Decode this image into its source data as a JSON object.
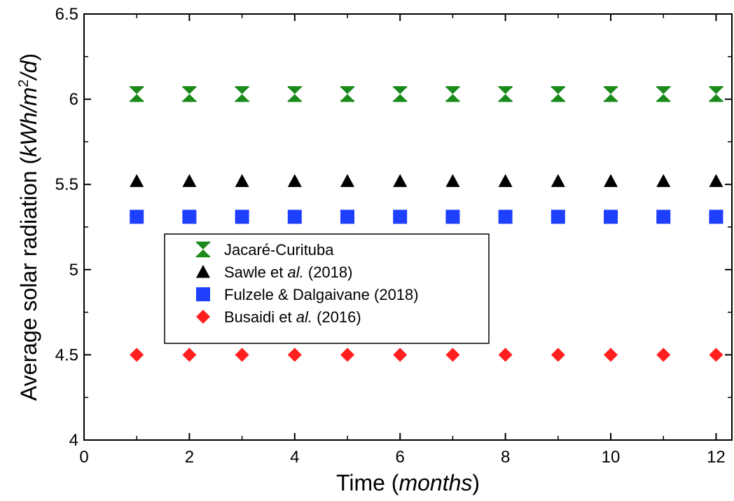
{
  "chart_data": {
    "type": "scatter",
    "x": [
      1,
      2,
      3,
      4,
      5,
      6,
      7,
      8,
      9,
      10,
      11,
      12
    ],
    "xlim": [
      0,
      12.3
    ],
    "ylim": [
      4,
      6.5
    ],
    "x_ticks": [
      "0",
      "2",
      "4",
      "6",
      "8",
      "10",
      "12"
    ],
    "x_tick_values": [
      0,
      2,
      4,
      6,
      8,
      10,
      12
    ],
    "y_ticks": [
      "4",
      "4.5",
      "5",
      "5.5",
      "6",
      "6.5"
    ],
    "y_tick_values": [
      4,
      4.5,
      5,
      5.5,
      6,
      6.5
    ],
    "xlabel": {
      "main": "Time (",
      "italic": "months",
      "tail": ")"
    },
    "ylabel": {
      "main": "Average solar radiation (",
      "italic": "kWh/m",
      "sup": "2",
      "italic2": "/d",
      "tail": ")"
    },
    "grid": false,
    "legend_position": "center-left",
    "series": [
      {
        "name": "Jacaré-Curituba",
        "legend": {
          "main": "Jacaré-Curituba",
          "italic": "",
          "tail": ""
        },
        "marker": "hourglass",
        "color": "#1a8a1a",
        "values": [
          6.03,
          6.03,
          6.03,
          6.03,
          6.03,
          6.03,
          6.03,
          6.03,
          6.03,
          6.03,
          6.03,
          6.03
        ]
      },
      {
        "name": "Sawle et al. (2018)",
        "legend": {
          "main": "Sawle et ",
          "italic": "al.",
          "tail": " (2018)"
        },
        "marker": "triangle",
        "color": "#000000",
        "values": [
          5.52,
          5.52,
          5.52,
          5.52,
          5.52,
          5.52,
          5.52,
          5.52,
          5.52,
          5.52,
          5.52,
          5.52
        ]
      },
      {
        "name": "Fulzele & Dalgaivane (2018)",
        "legend": {
          "main": "Fulzele & Dalgaivane (2018)",
          "italic": "",
          "tail": ""
        },
        "marker": "square",
        "color": "#1f3fff",
        "values": [
          5.31,
          5.31,
          5.31,
          5.31,
          5.31,
          5.31,
          5.31,
          5.31,
          5.31,
          5.31,
          5.31,
          5.31
        ]
      },
      {
        "name": "Busaidi et al. (2016)",
        "legend": {
          "main": "Busaidi et ",
          "italic": "al.",
          "tail": " (2016)"
        },
        "marker": "diamond",
        "color": "#ff1f1f",
        "values": [
          4.5,
          4.5,
          4.5,
          4.5,
          4.5,
          4.5,
          4.5,
          4.5,
          4.5,
          4.5,
          4.5,
          4.5
        ]
      }
    ]
  }
}
